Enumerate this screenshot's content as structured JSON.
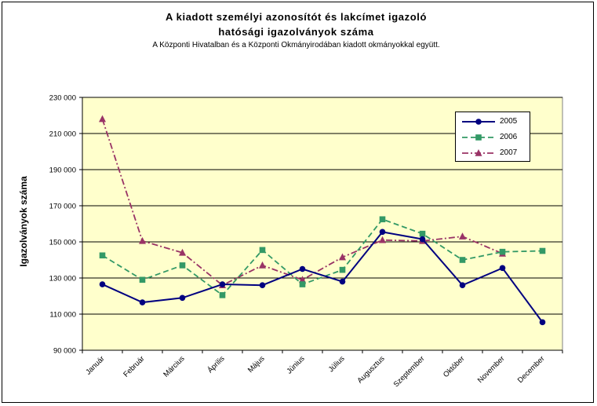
{
  "chart_data": {
    "type": "line",
    "title_line1": "A kiadott személyi azonosítót és lakcímet igazoló",
    "title_line2": "hatósági igazolványok száma",
    "subtitle": "A Központi Hivatalban és a Központi Okmányirodában kiadott okmányokkal együtt.",
    "xlabel": "",
    "ylabel": "Igazolványok száma",
    "ylim": [
      90000,
      230000
    ],
    "yticks": [
      90000,
      110000,
      130000,
      150000,
      170000,
      190000,
      210000,
      230000
    ],
    "ytick_labels": [
      "90 000",
      "110 000",
      "130 000",
      "150 000",
      "170 000",
      "190 000",
      "210 000",
      "230 000"
    ],
    "categories": [
      "Január",
      "Február",
      "Március",
      "Április",
      "Május",
      "Június",
      "Július",
      "Augusztus",
      "Szeptember",
      "Október",
      "November",
      "December"
    ],
    "grid": true,
    "legend_position": "top-right",
    "plot_background": "#FFFFCC",
    "series": [
      {
        "name": "2005",
        "color": "#000080",
        "marker": "circle",
        "dash": "solid",
        "values": [
          126500,
          116500,
          119000,
          126500,
          126000,
          135000,
          128000,
          155500,
          151500,
          126000,
          135500,
          105500
        ]
      },
      {
        "name": "2006",
        "color": "#339966",
        "marker": "square",
        "dash": "dash",
        "values": [
          142500,
          129000,
          137000,
          120500,
          145500,
          126500,
          134500,
          162500,
          154500,
          140000,
          144500,
          145000
        ]
      },
      {
        "name": "2007",
        "color": "#993366",
        "marker": "triangle",
        "dash": "dashdot",
        "values": [
          218000,
          150500,
          144000,
          126000,
          137000,
          129000,
          141500,
          151000,
          150500,
          153000,
          143500,
          null
        ]
      }
    ]
  }
}
